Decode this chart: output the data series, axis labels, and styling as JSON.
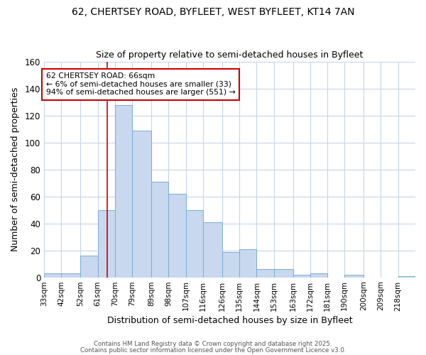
{
  "title_line1": "62, CHERTSEY ROAD, BYFLEET, WEST BYFLEET, KT14 7AN",
  "title_line2": "Size of property relative to semi-detached houses in Byfleet",
  "xlabel": "Distribution of semi-detached houses by size in Byfleet",
  "ylabel": "Number of semi-detached properties",
  "categories": [
    "33sqm",
    "42sqm",
    "52sqm",
    "61sqm",
    "70sqm",
    "79sqm",
    "89sqm",
    "98sqm",
    "107sqm",
    "116sqm",
    "126sqm",
    "135sqm",
    "144sqm",
    "153sqm",
    "163sqm",
    "172sqm",
    "181sqm",
    "190sqm",
    "200sqm",
    "209sqm",
    "218sqm"
  ],
  "bin_edges": [
    33,
    42,
    52,
    61,
    70,
    79,
    89,
    98,
    107,
    116,
    126,
    135,
    144,
    153,
    163,
    172,
    181,
    190,
    200,
    209,
    218,
    227
  ],
  "values": [
    3,
    3,
    16,
    50,
    128,
    109,
    71,
    62,
    50,
    41,
    19,
    21,
    6,
    6,
    2,
    3,
    0,
    2,
    0,
    0,
    1
  ],
  "bar_color": "#c8d8ef",
  "bar_edge_color": "#7aadd4",
  "bar_linewidth": 0.7,
  "property_value": 66,
  "red_line_color": "#cc0000",
  "annotation_text": "62 CHERTSEY ROAD: 66sqm\n← 6% of semi-detached houses are smaller (33)\n94% of semi-detached houses are larger (551) →",
  "annotation_box_color": "#ffffff",
  "annotation_box_edge_color": "#cc0000",
  "background_color": "#ffffff",
  "plot_bg_color": "#ffffff",
  "grid_color": "#c8d4e8",
  "ylim": [
    0,
    160
  ],
  "yticks": [
    0,
    20,
    40,
    60,
    80,
    100,
    120,
    140,
    160
  ],
  "footer_line1": "Contains HM Land Registry data © Crown copyright and database right 2025.",
  "footer_line2": "Contains public sector information licensed under the Open Government Licence v3.0."
}
